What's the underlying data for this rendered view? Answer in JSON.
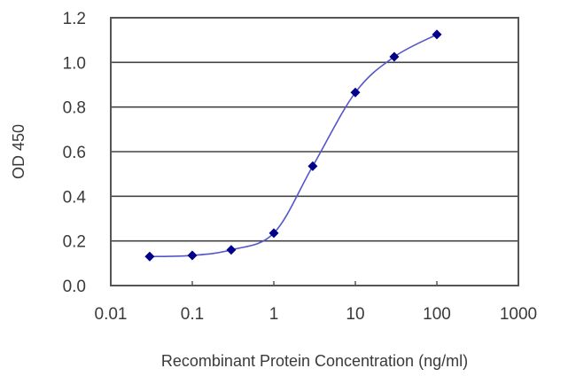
{
  "chart_data": {
    "type": "line",
    "title": "",
    "xlabel": "Recombinant Protein Concentration (ng/ml)",
    "ylabel": "OD 450",
    "xscale": "log",
    "xlim": [
      0.01,
      1000
    ],
    "ylim": [
      0.0,
      1.2
    ],
    "x_ticks": [
      "0.01",
      "0.1",
      "1",
      "10",
      "100",
      "1000"
    ],
    "y_ticks": [
      "0.0",
      "0.2",
      "0.4",
      "0.6",
      "0.8",
      "1.0",
      "1.2"
    ],
    "grid": {
      "horizontal": true,
      "vertical": false
    },
    "legend": null,
    "series": [
      {
        "name": "OD 450",
        "color": "#00008b",
        "marker": "diamond",
        "x": [
          0.03,
          0.1,
          0.3,
          1,
          3,
          10,
          30,
          100
        ],
        "y": [
          0.13,
          0.135,
          0.16,
          0.235,
          0.535,
          0.865,
          1.025,
          1.125
        ]
      }
    ]
  }
}
